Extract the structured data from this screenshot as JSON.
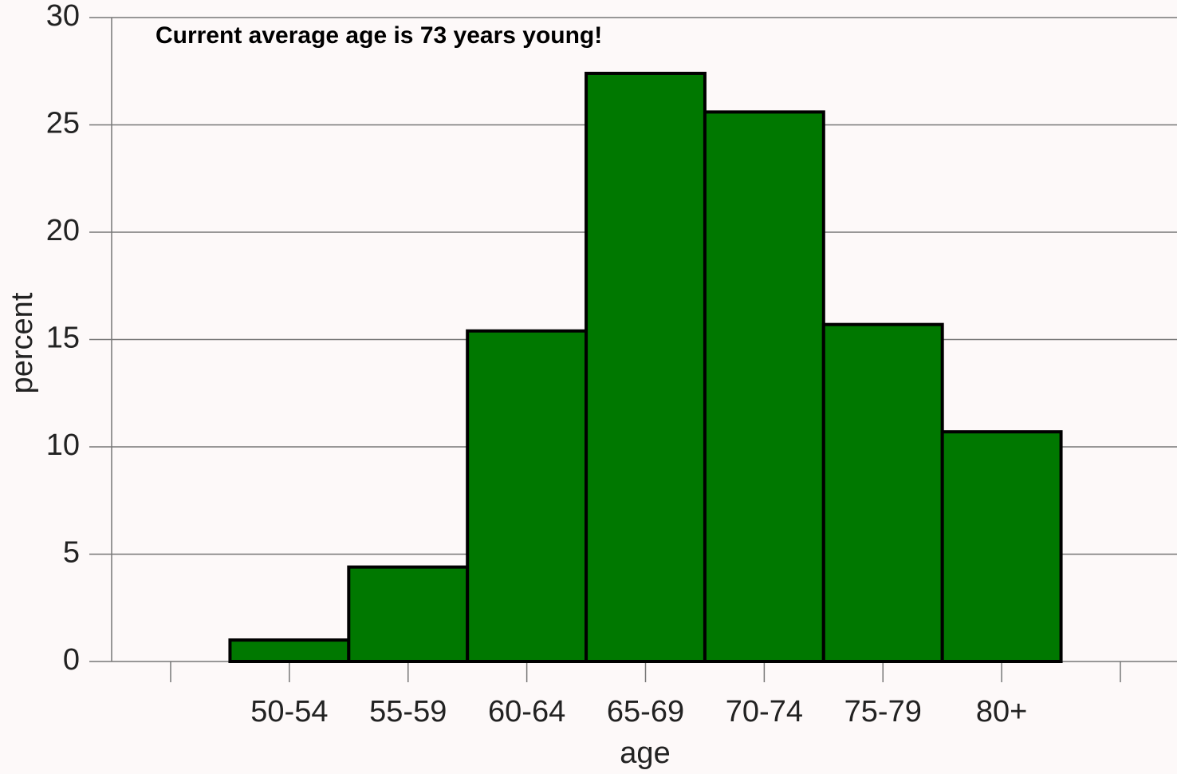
{
  "chart_data": {
    "type": "bar",
    "title": "Current average age is 73 years young!",
    "x_label": "age",
    "y_label": "percent",
    "categories": [
      null,
      "50-54",
      "55-59",
      "60-64",
      "65-69",
      "70-74",
      "75-79",
      "80+",
      null
    ],
    "values": [
      null,
      1.0,
      4.4,
      15.4,
      27.4,
      25.6,
      15.7,
      10.7,
      null
    ],
    "color": "#007800",
    "ylim": [
      0,
      30
    ],
    "yticks": [
      0,
      5,
      10,
      15,
      20,
      25,
      30
    ],
    "grid": true
  }
}
